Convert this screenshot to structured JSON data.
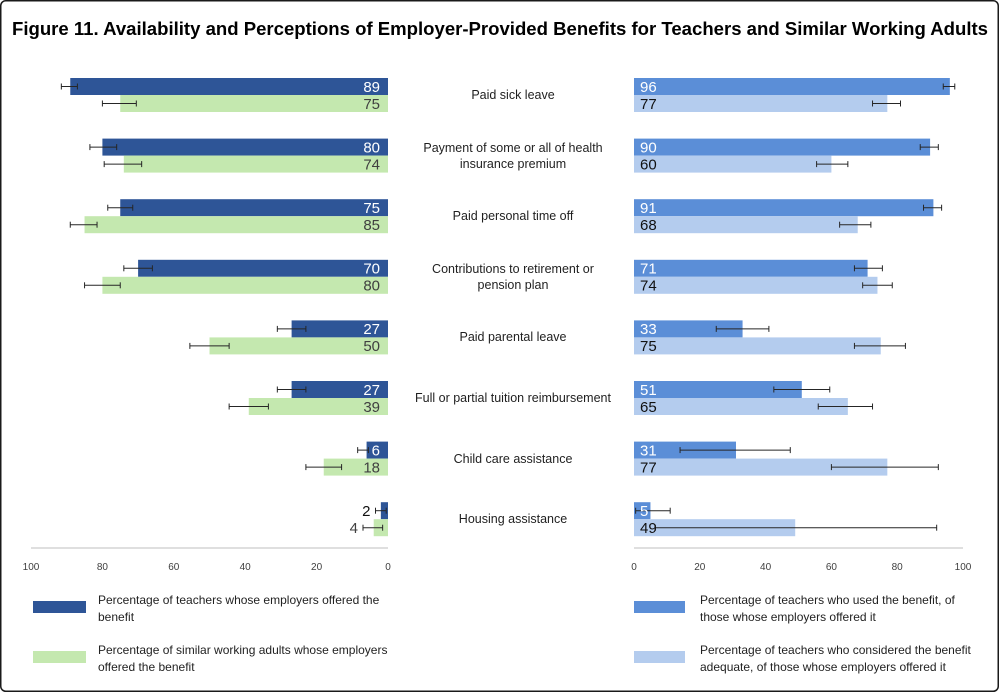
{
  "chart_data": {
    "type": "bar",
    "orientation": "horizontal",
    "title": "Figure 11. Availability and Perceptions of Employer-Provided Benefits for Teachers and Similar Working Adults",
    "categories": [
      "Paid sick leave",
      "Payment of some or all of health\ninsurance premium",
      "Paid personal time off",
      "Contributions to retirement or\npension plan",
      "Paid parental leave",
      "Full or partial tuition reimbursement",
      "Child care assistance",
      "Housing assistance"
    ],
    "grid": false,
    "legend": "bottom",
    "panels": [
      {
        "reversed": true,
        "xlim": [
          0,
          100
        ],
        "ticks": [
          100,
          80,
          60,
          40,
          20,
          0
        ],
        "series": [
          {
            "name": "Percentage of teachers whose employers offered the benefit",
            "color": "#2E5597",
            "label_color": "#FFFFFF",
            "values": [
              89,
              80,
              75,
              70,
              27,
              27,
              6,
              2
            ],
            "error_range": [
              [
                87,
                91.5
              ],
              [
                76,
                83.5
              ],
              [
                71.5,
                78.5
              ],
              [
                66,
                74
              ],
              [
                23,
                31
              ],
              [
                23,
                31
              ],
              [
                5.5,
                8.5
              ],
              [
                0.5,
                3.5
              ]
            ]
          },
          {
            "name": "Percentage of similar working adults whose employers offered the benefit",
            "color": "#C4E8AF",
            "label_color": "#404040",
            "values": [
              75,
              74,
              85,
              80,
              50,
              39,
              18,
              4
            ],
            "error_range": [
              [
                70.5,
                80
              ],
              [
                69,
                79.5
              ],
              [
                81.5,
                89
              ],
              [
                75,
                85
              ],
              [
                44.5,
                55.5
              ],
              [
                33.5,
                44.5
              ],
              [
                13,
                23
              ],
              [
                1.5,
                7
              ]
            ]
          }
        ]
      },
      {
        "reversed": false,
        "xlim": [
          0,
          100
        ],
        "ticks": [
          0,
          20,
          40,
          60,
          80,
          100
        ],
        "series": [
          {
            "name": "Percentage of teachers who used the benefit, of those whose employers offered it",
            "color": "#5B8ED7",
            "label_color": "#FFFFFF",
            "values": [
              96,
              90,
              91,
              71,
              33,
              51,
              31,
              5
            ],
            "error_range": [
              [
                94,
                97.5
              ],
              [
                87,
                92.5
              ],
              [
                88,
                93.5
              ],
              [
                67,
                75.5
              ],
              [
                25,
                41
              ],
              [
                42.5,
                59.5
              ],
              [
                14,
                47.5
              ],
              [
                0.5,
                11
              ]
            ]
          },
          {
            "name": "Percentage of teachers who considered the benefit adequate, of those whose employers offered it",
            "color": "#B4CCEE",
            "label_color": "#111111",
            "values": [
              77,
              60,
              68,
              74,
              75,
              65,
              77,
              49
            ],
            "error_range": [
              [
                72.5,
                81
              ],
              [
                55.5,
                65
              ],
              [
                62.5,
                72
              ],
              [
                69.5,
                78.5
              ],
              [
                67,
                82.5
              ],
              [
                56,
                72.5
              ],
              [
                60,
                92.5
              ],
              [
                6.5,
                92
              ]
            ]
          }
        ]
      }
    ]
  }
}
